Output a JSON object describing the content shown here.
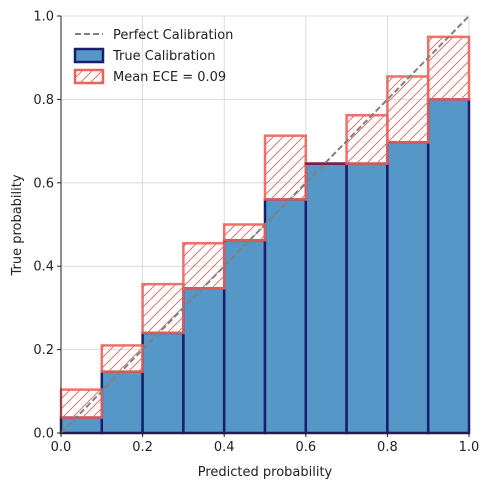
{
  "chart_data": {
    "type": "bar",
    "xlabel": "Predicted probability",
    "ylabel": "True probability",
    "xlim": [
      0,
      1
    ],
    "ylim": [
      0,
      1
    ],
    "x_ticks": [
      "0.0",
      "0.2",
      "0.4",
      "0.6",
      "0.8",
      "1.0"
    ],
    "y_ticks": [
      "0.0",
      "0.2",
      "0.4",
      "0.6",
      "0.8",
      "1.0"
    ],
    "grid": true,
    "legend_position": "upper-left",
    "bin_edges": [
      0.0,
      0.1,
      0.2,
      0.3,
      0.4,
      0.5,
      0.6,
      0.7,
      0.8,
      0.9,
      1.0
    ],
    "series": [
      {
        "name": "Perfect Calibration",
        "kind": "dashed-line",
        "color": "#808080"
      },
      {
        "name": "True Calibration",
        "kind": "bar",
        "color": "#5597c6",
        "edge_color": "#1a1f6e",
        "values": [
          0.037,
          0.147,
          0.24,
          0.347,
          0.462,
          0.56,
          0.646,
          0.646,
          0.697,
          0.8
        ]
      },
      {
        "name": "Mean ECE = 0.09",
        "kind": "gap",
        "color": "#f0605a",
        "values": [
          0.104,
          0.21,
          0.357,
          0.455,
          0.5,
          0.713,
          0.646,
          0.762,
          0.855,
          0.95
        ]
      }
    ]
  }
}
